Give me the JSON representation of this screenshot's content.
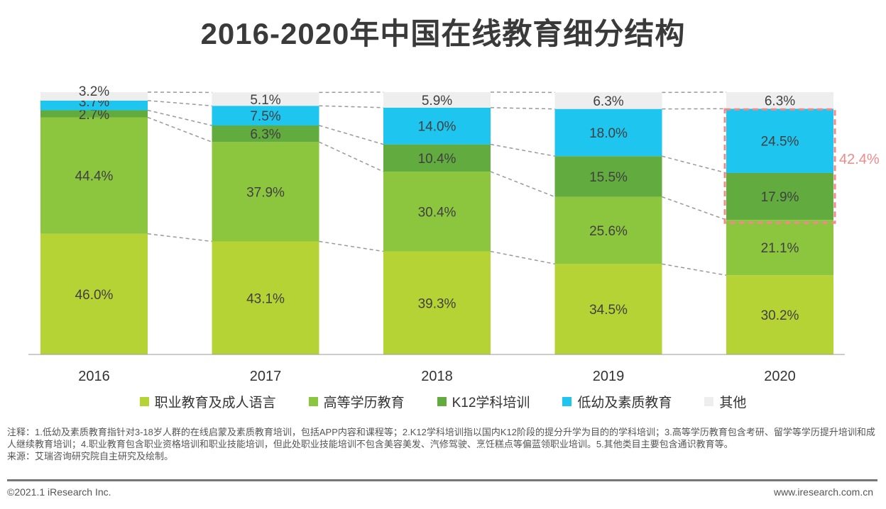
{
  "chart_data": {
    "type": "bar",
    "stacked": true,
    "title": "2016-2020年中国在线教育细分结构",
    "categories": [
      "2016",
      "2017",
      "2018",
      "2019",
      "2020"
    ],
    "series": [
      {
        "name": "职业教育及成人语言",
        "color": "#b5d334",
        "values": [
          46.0,
          43.1,
          39.3,
          34.5,
          30.2
        ]
      },
      {
        "name": "高等学历教育",
        "color": "#8cc63f",
        "values": [
          44.4,
          37.9,
          30.4,
          25.6,
          21.1
        ]
      },
      {
        "name": "K12学科培训",
        "color": "#62ab3f",
        "values": [
          2.7,
          6.3,
          10.4,
          15.5,
          17.9
        ]
      },
      {
        "name": "低幼及素质教育",
        "color": "#1ec5ef",
        "values": [
          3.7,
          7.5,
          14.0,
          18.0,
          24.5
        ]
      },
      {
        "name": "其他",
        "color": "#eeeeee",
        "values": [
          3.2,
          5.1,
          5.9,
          6.3,
          6.3
        ]
      }
    ],
    "ylim": [
      0,
      100
    ],
    "legend": "bottom",
    "annotation": {
      "text": "42.4%",
      "category": "2020",
      "color": "#f08a8a"
    }
  },
  "notes": [
    "注释：1.低幼及素质教育指针对3-18岁人群的在线启蒙及素质教育培训，包括APP内容和课程等；2.K12学科培训指以国内K12阶段的提分升学为目的的学科培训；3.高等学历教育包含考研、留学等学历提升培训和成人继续教育培训；4.职业教育包含职业资格培训和职业技能培训，但此处职业技能培训不包含美容美发、汽修驾驶、烹饪糕点等偏蓝领职业培训。5.其他类目主要包含通识教育等。",
    "来源：艾瑞咨询研究院自主研究及绘制。"
  ],
  "footer": {
    "copyright": "©2021.1 iResearch Inc.",
    "site": "www.iresearch.com.cn"
  }
}
